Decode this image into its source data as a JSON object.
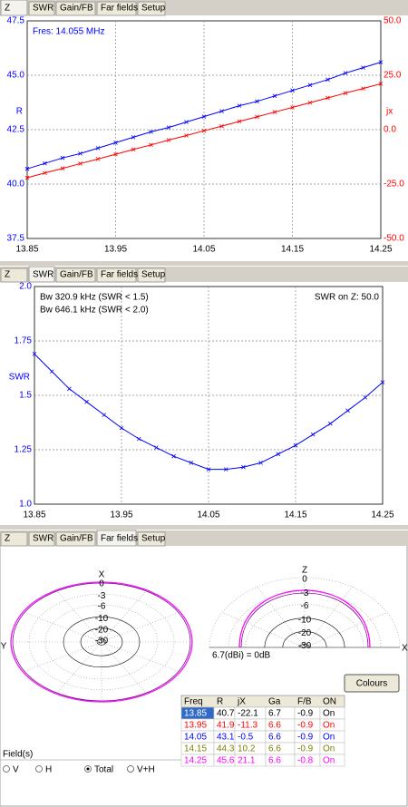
{
  "tab_bars": [
    {
      "tabs": [
        "Z",
        "SWR",
        "Gain/FB",
        "Far fields",
        "Setup"
      ],
      "active": 0
    },
    {
      "tabs": [
        "Z",
        "SWR",
        "Gain/FB",
        "Far fields",
        "Setup"
      ],
      "active": 1
    },
    {
      "tabs": [
        "Z",
        "SWR",
        "Gain/FB",
        "Far fields",
        "Setup"
      ],
      "active": 3
    }
  ],
  "chart_data": [
    {
      "type": "line",
      "x": [
        13.85,
        13.87,
        13.89,
        13.91,
        13.93,
        13.95,
        13.97,
        13.99,
        14.01,
        14.03,
        14.05,
        14.07,
        14.09,
        14.11,
        14.13,
        14.15,
        14.17,
        14.19,
        14.21,
        14.23,
        14.25
      ],
      "series": [
        {
          "name": "R",
          "color": "#0000ff",
          "values": [
            40.7,
            40.95,
            41.2,
            41.4,
            41.65,
            41.9,
            42.15,
            42.4,
            42.6,
            42.85,
            43.1,
            43.35,
            43.6,
            43.8,
            44.05,
            44.3,
            44.55,
            44.8,
            45.1,
            45.35,
            45.6
          ]
        },
        {
          "name": "jx",
          "color": "#ff0000",
          "axis": "y2",
          "values": [
            -22.1,
            -19.9,
            -17.8,
            -15.6,
            -13.5,
            -11.3,
            -9.1,
            -7.0,
            -4.8,
            -2.7,
            -0.5,
            1.6,
            3.8,
            5.9,
            8.1,
            10.2,
            12.4,
            14.6,
            16.8,
            18.9,
            21.1
          ]
        }
      ],
      "annotations": [
        "Fres: 14.055 MHz"
      ],
      "annotation_color": "#0000ff",
      "xlim": [
        13.85,
        14.25
      ],
      "xticks": [
        13.85,
        13.95,
        14.05,
        14.15,
        14.25
      ],
      "ylim": [
        37.5,
        47.5
      ],
      "yticks": [
        37.5,
        {
          "value": 40,
          "label": "40.0"
        },
        42.5,
        {
          "value": 45,
          "label": "45.0"
        },
        47.5
      ],
      "y2lim": [
        -50,
        50
      ],
      "y2ticks": [
        {
          "value": -50,
          "label": "-50.0"
        },
        {
          "value": -25,
          "label": "-25.0"
        },
        {
          "value": 0,
          "label": "0.0"
        },
        {
          "value": 25,
          "label": "25.0"
        },
        {
          "value": 50,
          "label": "50.0"
        }
      ],
      "grid": true,
      "markers": "x"
    },
    {
      "type": "line",
      "x": [
        13.85,
        13.87,
        13.89,
        13.91,
        13.93,
        13.95,
        13.97,
        13.99,
        14.01,
        14.03,
        14.05,
        14.07,
        14.09,
        14.11,
        14.13,
        14.15,
        14.17,
        14.19,
        14.21,
        14.23,
        14.25
      ],
      "series": [
        {
          "name": "SWR",
          "color": "#0000ff",
          "values": [
            1.69,
            1.61,
            1.53,
            1.47,
            1.41,
            1.35,
            1.3,
            1.26,
            1.22,
            1.19,
            1.16,
            1.16,
            1.17,
            1.19,
            1.23,
            1.27,
            1.32,
            1.37,
            1.43,
            1.49,
            1.56
          ]
        }
      ],
      "annotations": [
        "Bw 320.9 kHz (SWR < 1.5)",
        "Bw 646.1 kHz (SWR < 2.0)"
      ],
      "annotation_color": "#000000",
      "annotation_right": "SWR on Z: 50.0",
      "xlim": [
        13.85,
        14.25
      ],
      "xticks": [
        13.85,
        13.95,
        14.05,
        14.15,
        14.25
      ],
      "ylim": [
        1,
        2
      ],
      "yticks": [
        {
          "value": 1,
          "label": "1.0"
        },
        1.25,
        1.5,
        1.75,
        {
          "value": 2,
          "label": "2.0"
        }
      ],
      "grid": true,
      "markers": "x"
    }
  ],
  "far_fields": {
    "left_plot": {
      "axis_top": "X",
      "axis_side": "Y",
      "rings": [
        0,
        -3,
        -6,
        -10,
        -20,
        -30
      ]
    },
    "right_plot": {
      "axis_top": "Z",
      "axis_side": "X",
      "rings": [
        0,
        -3,
        -6,
        -10,
        -20,
        -30
      ]
    },
    "reference": "6.7(dBi) = 0dB",
    "button": "Colours",
    "table": {
      "header": [
        "Freq",
        "R",
        "jX",
        "Ga",
        "F/B",
        "ON"
      ],
      "selected_row": 0,
      "rows": [
        {
          "color": "#000000",
          "cells": [
            13.85,
            40.7,
            -22.1,
            6.7,
            -0.9,
            "On"
          ]
        },
        {
          "color": "#ff0000",
          "cells": [
            13.95,
            41.9,
            -11.3,
            6.6,
            -0.9,
            "On"
          ]
        },
        {
          "color": "#0000ff",
          "cells": [
            14.05,
            43.1,
            -0.5,
            6.6,
            -0.9,
            "On"
          ]
        },
        {
          "color": "#808000",
          "cells": [
            14.15,
            44.3,
            10.2,
            6.6,
            -0.9,
            "On"
          ]
        },
        {
          "color": "#ff00ff",
          "cells": [
            14.25,
            45.6,
            21.1,
            6.6,
            -0.8,
            "On"
          ]
        }
      ]
    },
    "fields": {
      "title": "Field(s)",
      "options": [
        "V",
        "H",
        "Total",
        "V+H"
      ],
      "selected": 2
    }
  }
}
